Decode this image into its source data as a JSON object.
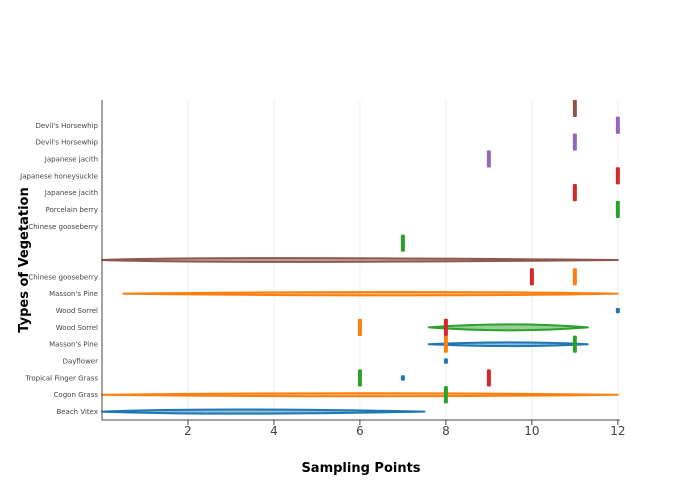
{
  "chart_data": {
    "type": "violin",
    "title": "",
    "xlabel": "Sampling Points",
    "ylabel": "Types of Vegetation",
    "xlim": [
      0,
      12.05
    ],
    "x_ticks": [
      2,
      4,
      6,
      8,
      10,
      12
    ],
    "grid": true,
    "legend": "none",
    "categories": [
      "Beach Vitex",
      "Cogon Grass",
      "Tropical Finger Grass",
      "Dayflower",
      "Masson's Pine",
      "Wood Sorrel",
      "Wood Sorrel",
      "Masson's Pine",
      "Chinese gooseberry",
      "",
      "",
      "Chinese gooseberry",
      "Porcelain berry",
      "Japanese jacith",
      "Japanese honeysuckle",
      "Japanese jacith",
      "Devil's Horsewhip",
      "Devil's Horsewhip"
    ],
    "series": [
      {
        "color": "#1f77b4",
        "violins": [
          {
            "row": 0,
            "min": 0.0,
            "max": 7.5,
            "peak": 2.5,
            "width": 0.25
          },
          {
            "row": 2,
            "min": 7.0,
            "max": 7.0,
            "peak": 7.0,
            "width": 0.2
          },
          {
            "row": 3,
            "min": 8.0,
            "max": 8.0,
            "peak": 8.0,
            "width": 0.2
          },
          {
            "row": 4,
            "min": 7.6,
            "max": 11.3,
            "peak": 9.6,
            "width": 0.22
          },
          {
            "row": 6,
            "min": 12.0,
            "max": 12.0,
            "peak": 12.0,
            "width": 0.2
          }
        ]
      },
      {
        "color": "#ff7f0e",
        "violins": [
          {
            "row": 1,
            "min": 0.0,
            "max": 12.0,
            "peak": 6.0,
            "width": 0.18
          },
          {
            "row": 4,
            "min": 8.0,
            "max": 8.0,
            "peak": 8.0,
            "width": 0.9
          },
          {
            "row": 5,
            "min": 6.0,
            "max": 6.0,
            "peak": 6.0,
            "width": 0.9
          },
          {
            "row": 7,
            "min": 0.5,
            "max": 12.0,
            "peak": 8.0,
            "width": 0.2
          },
          {
            "row": 8,
            "min": 11.0,
            "max": 11.0,
            "peak": 11.0,
            "width": 0.9
          }
        ]
      },
      {
        "color": "#2ca02c",
        "violins": [
          {
            "row": 1,
            "min": 8.0,
            "max": 8.0,
            "peak": 8.0,
            "width": 0.9
          },
          {
            "row": 2,
            "min": 6.0,
            "max": 6.0,
            "peak": 6.0,
            "width": 0.9
          },
          {
            "row": 4,
            "min": 11.0,
            "max": 11.0,
            "peak": 11.0,
            "width": 0.9
          },
          {
            "row": 5,
            "min": 7.6,
            "max": 11.3,
            "peak": 9.5,
            "width": 0.35
          },
          {
            "row": 10,
            "min": 7.0,
            "max": 7.0,
            "peak": 7.0,
            "width": 0.9
          },
          {
            "row": 12,
            "min": 12.0,
            "max": 12.0,
            "peak": 12.0,
            "width": 0.9
          }
        ]
      },
      {
        "color": "#d62728",
        "violins": [
          {
            "row": 2,
            "min": 9.0,
            "max": 9.0,
            "peak": 9.0,
            "width": 0.9
          },
          {
            "row": 5,
            "min": 8.0,
            "max": 8.0,
            "peak": 8.0,
            "width": 0.9
          },
          {
            "row": 8,
            "min": 10.0,
            "max": 10.0,
            "peak": 10.0,
            "width": 0.9
          },
          {
            "row": 13,
            "min": 11.0,
            "max": 11.0,
            "peak": 11.0,
            "width": 0.9
          },
          {
            "row": 14,
            "min": 12.0,
            "max": 12.0,
            "peak": 12.0,
            "width": 0.9
          }
        ]
      },
      {
        "color": "#9467bd",
        "violins": [
          {
            "row": 15,
            "min": 9.0,
            "max": 9.0,
            "peak": 9.0,
            "width": 0.9
          },
          {
            "row": 16,
            "min": 11.0,
            "max": 11.0,
            "peak": 11.0,
            "width": 0.9
          },
          {
            "row": 17,
            "min": 12.0,
            "max": 12.0,
            "peak": 12.0,
            "width": 0.9
          }
        ]
      },
      {
        "color": "#8c564b",
        "violins": [
          {
            "row": 9,
            "min": 0.0,
            "max": 12.0,
            "peak": 2.5,
            "width": 0.22
          },
          {
            "row": 18,
            "min": 11.0,
            "max": 11.0,
            "peak": 11.0,
            "width": 0.9
          }
        ]
      }
    ]
  }
}
